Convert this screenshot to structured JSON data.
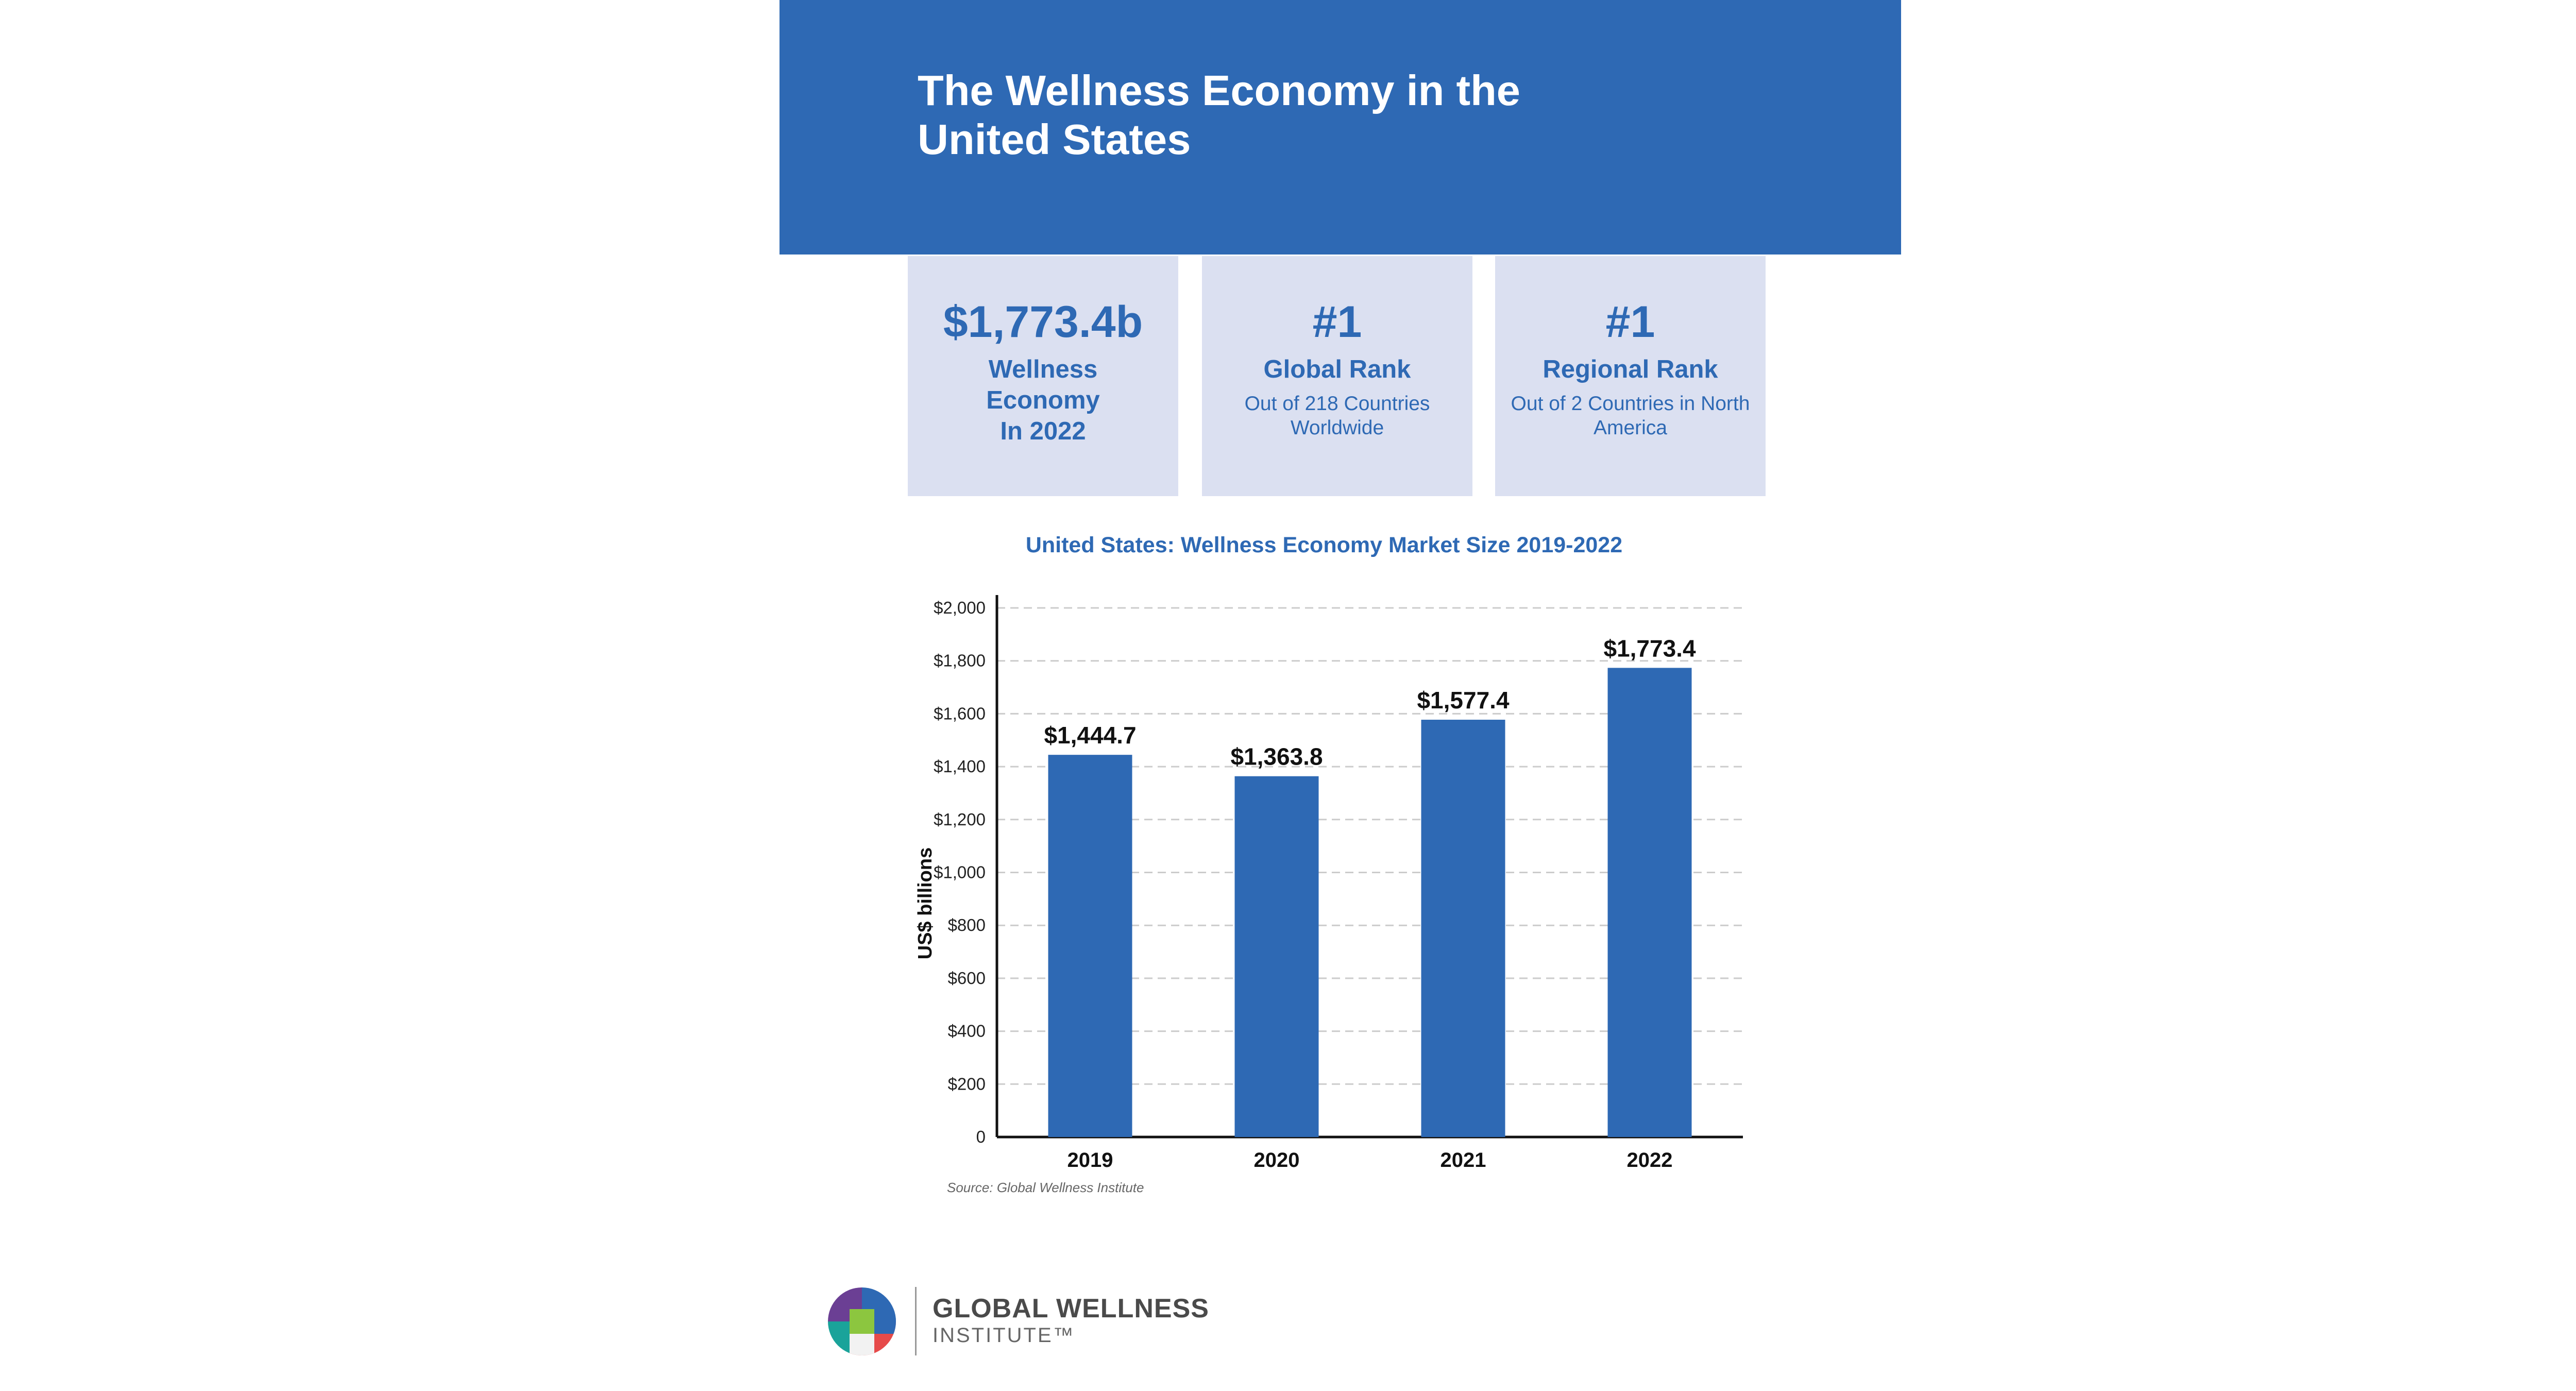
{
  "header": {
    "title": "The Wellness Economy in the United States"
  },
  "cards": [
    {
      "big": "$1,773.4b",
      "label": "Wellness\nEconomy\nIn 2022",
      "sub": ""
    },
    {
      "big": "#1",
      "label": "Global Rank",
      "sub": "Out of 218 Countries Worldwide"
    },
    {
      "big": "#1",
      "label": "Regional Rank",
      "sub": "Out of 2 Countries in North America"
    }
  ],
  "colors": {
    "brand_blue": "#2e69b4",
    "card_bg": "#dbe0f1",
    "grid": "#cccccc"
  },
  "chart_data": {
    "type": "bar",
    "title": "United States: Wellness Economy Market Size 2019-2022",
    "categories": [
      "2019",
      "2020",
      "2021",
      "2022"
    ],
    "values": [
      1444.7,
      1363.8,
      1577.4,
      1773.4
    ],
    "value_labels": [
      "$1,444.7",
      "$1,363.8",
      "$1,577.4",
      "$1,773.4"
    ],
    "xlabel": "",
    "ylabel": "US$ billions",
    "ylim": [
      0,
      2000
    ],
    "yticks": [
      0,
      200,
      400,
      600,
      800,
      1000,
      1200,
      1400,
      1600,
      1800,
      2000
    ],
    "ytick_labels": [
      "0",
      "$200",
      "$400",
      "$600",
      "$800",
      "$1,000",
      "$1,200",
      "$1,400",
      "$1,600",
      "$1,800",
      "$2,000"
    ],
    "grid": true,
    "legend": "none",
    "source": "Source: Global Wellness Institute"
  },
  "logo": {
    "line1": "GLOBAL WELLNESS",
    "line2": "INSTITUTE™",
    "icon": "gwi-logo-icon"
  }
}
